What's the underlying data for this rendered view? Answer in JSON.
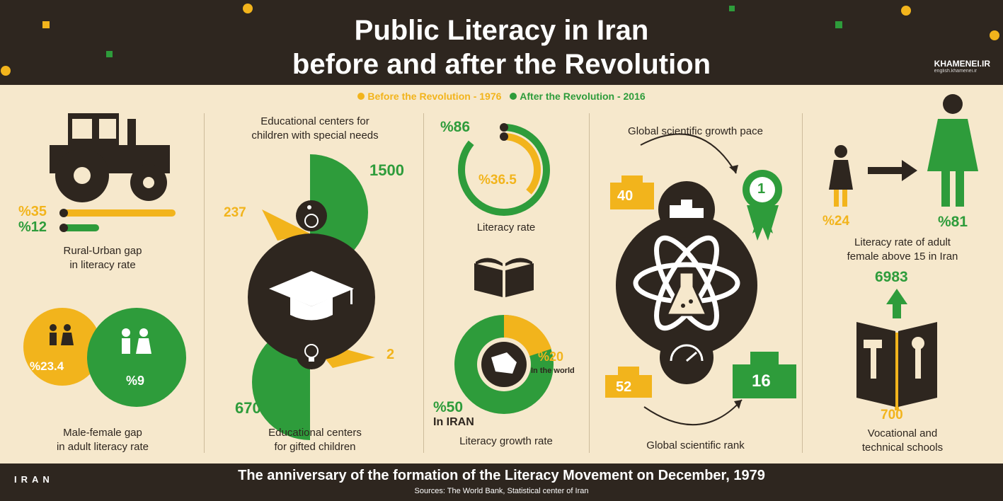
{
  "header": {
    "title_line1": "Public Literacy in Iran",
    "title_line2": "before and after the Revolution",
    "brand": "KHAMENEI.IR",
    "brand_sub": "english.khamenei.ir"
  },
  "legend": {
    "before": "Before the Revolution - 1976",
    "after": "After the Revolution - 2016"
  },
  "colors": {
    "dark": "#2e261f",
    "background": "#f6e8cc",
    "before": "#f2b41c",
    "after": "#2e9c3b"
  },
  "rural_urban": {
    "before": "%35",
    "after": "%12",
    "caption_line1": "Rural-Urban gap",
    "caption_line2": "in literacy rate"
  },
  "gender_gap": {
    "before": "%23.4",
    "after": "%9",
    "caption_line1": "Male-female gap",
    "caption_line2": "in adult literacy rate"
  },
  "special_needs": {
    "caption_line1": "Educational centers for",
    "caption_line2": "children with special needs",
    "before": "237",
    "after": "1500"
  },
  "gifted": {
    "before": "2",
    "after": "670",
    "caption_line1": "Educational centers",
    "caption_line2": "for gifted children"
  },
  "literacy_rate": {
    "after": "%86",
    "before": "%36.5",
    "caption": "Literacy rate"
  },
  "literacy_growth": {
    "world_value": "%20",
    "world_label": "In the world",
    "iran_value": "%50",
    "iran_label": "In IRAN",
    "caption": "Literacy growth rate"
  },
  "science": {
    "pace_caption": "Global scientific growth pace",
    "pace_before": "40",
    "pace_after": "1",
    "rank_before": "52",
    "rank_after": "16",
    "rank_caption": "Global scientific rank"
  },
  "female_literacy": {
    "before": "%24",
    "after": "%81",
    "caption_line1": "Literacy rate of adult",
    "caption_line2": "female above 15 in Iran"
  },
  "vocational": {
    "after": "6983",
    "before": "700",
    "caption_line1": "Vocational and",
    "caption_line2": "technical schools"
  },
  "footer": {
    "main": "The anniversary of the formation of the Literacy Movement on December, 1979",
    "sources": "Sources: The World Bank, Statistical center of Iran",
    "logo": "IRAN"
  }
}
